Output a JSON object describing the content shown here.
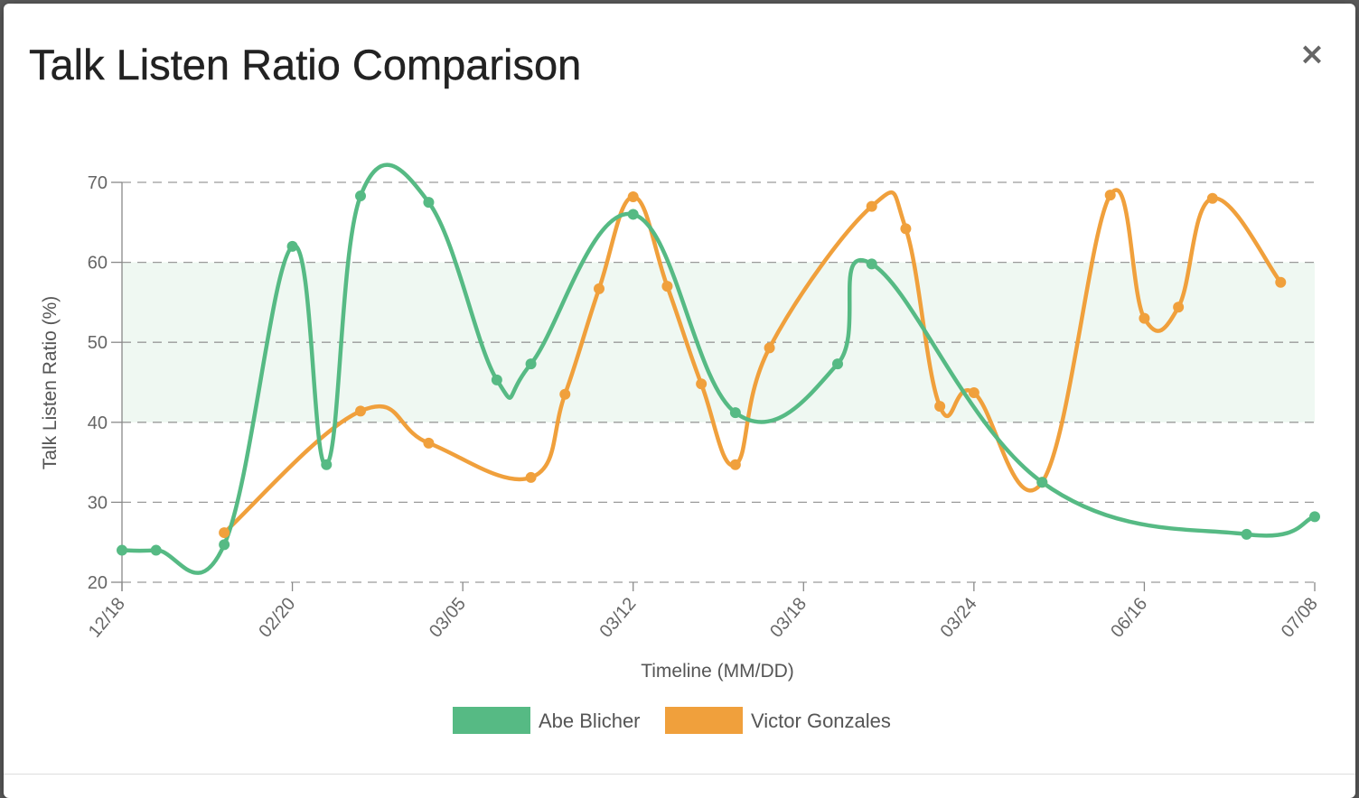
{
  "modal": {
    "title": "Talk Listen Ratio Comparison",
    "close_label": "×"
  },
  "chart_data": {
    "type": "line",
    "title": "Talk Listen Ratio Comparison",
    "xlabel": "Timeline (MM/DD)",
    "ylabel": "Talk Listen Ratio (%)",
    "ylim": [
      20,
      70
    ],
    "yticks": [
      20,
      30,
      40,
      50,
      60,
      70
    ],
    "x_range": [
      0,
      35
    ],
    "x_tick_labels": [
      {
        "x": 0,
        "label": "12/18"
      },
      {
        "x": 5,
        "label": "02/20"
      },
      {
        "x": 10,
        "label": "03/05"
      },
      {
        "x": 15,
        "label": "03/12"
      },
      {
        "x": 20,
        "label": "03/18"
      },
      {
        "x": 25,
        "label": "03/24"
      },
      {
        "x": 30,
        "label": "06/16"
      },
      {
        "x": 35,
        "label": "07/08"
      }
    ],
    "target_band": {
      "low": 40,
      "high": 60,
      "color": "#eff8f2"
    },
    "grid": true,
    "legend_position": "bottom-center",
    "series": [
      {
        "name": "Abe Blicher",
        "color": "#56ba84",
        "points": [
          [
            0,
            24
          ],
          [
            1,
            24
          ],
          [
            3,
            24.7
          ],
          [
            5,
            62
          ],
          [
            6,
            34.7
          ],
          [
            7,
            68.3
          ],
          [
            9,
            67.5
          ],
          [
            11,
            45.3
          ],
          [
            12,
            47.3
          ],
          [
            15,
            66
          ],
          [
            18,
            41.2
          ],
          [
            21,
            47.3
          ],
          [
            22,
            59.8
          ],
          [
            27,
            32.5
          ],
          [
            33,
            26
          ],
          [
            35,
            28.2
          ]
        ]
      },
      {
        "name": "Victor Gonzales",
        "color": "#f0a03c",
        "points": [
          [
            3,
            26.2
          ],
          [
            7,
            41.4
          ],
          [
            9,
            37.4
          ],
          [
            12,
            33.1
          ],
          [
            13,
            43.5
          ],
          [
            14,
            56.7
          ],
          [
            15,
            68.2
          ],
          [
            16,
            57
          ],
          [
            17,
            44.8
          ],
          [
            18,
            34.7
          ],
          [
            19,
            49.3
          ],
          [
            22,
            67
          ],
          [
            23,
            64.2
          ],
          [
            24,
            42
          ],
          [
            25,
            43.7
          ],
          [
            27,
            32.5
          ],
          [
            29,
            68.4
          ],
          [
            30,
            53
          ],
          [
            31,
            54.4
          ],
          [
            32,
            68
          ],
          [
            34,
            57.5
          ]
        ]
      }
    ]
  }
}
